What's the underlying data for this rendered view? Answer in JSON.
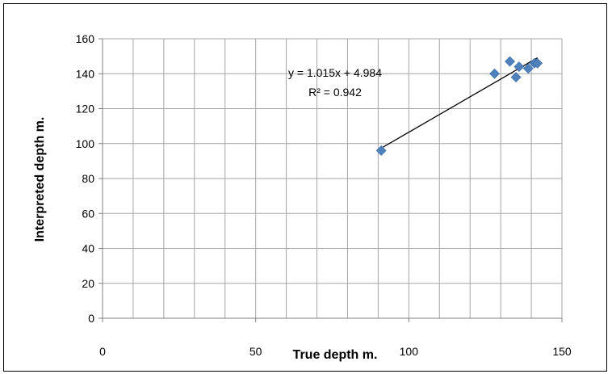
{
  "chart_data": {
    "type": "scatter",
    "title": "",
    "xlabel": "True depth m.",
    "ylabel": "Interpreted depth m.",
    "xlim": [
      0,
      150
    ],
    "ylim": [
      0,
      160
    ],
    "x_ticks": [
      "0",
      "50",
      "100",
      "150"
    ],
    "y_ticks": [
      "0",
      "20",
      "40",
      "60",
      "80",
      "100",
      "120",
      "140",
      "160"
    ],
    "grid": true,
    "legend": "none",
    "marker_color": "#4F81BD",
    "points": [
      {
        "x": 91,
        "y": 96
      },
      {
        "x": 128,
        "y": 140
      },
      {
        "x": 133,
        "y": 147
      },
      {
        "x": 135,
        "y": 138
      },
      {
        "x": 136,
        "y": 144
      },
      {
        "x": 139,
        "y": 143
      },
      {
        "x": 141,
        "y": 146
      },
      {
        "x": 142,
        "y": 146
      }
    ],
    "trendline": {
      "type": "linear",
      "slope": 1.015,
      "intercept": 4.984,
      "x_range": [
        91,
        142
      ],
      "equation_label": "y = 1.015x + 4.984",
      "r2_label": "R² = 0.942"
    }
  }
}
